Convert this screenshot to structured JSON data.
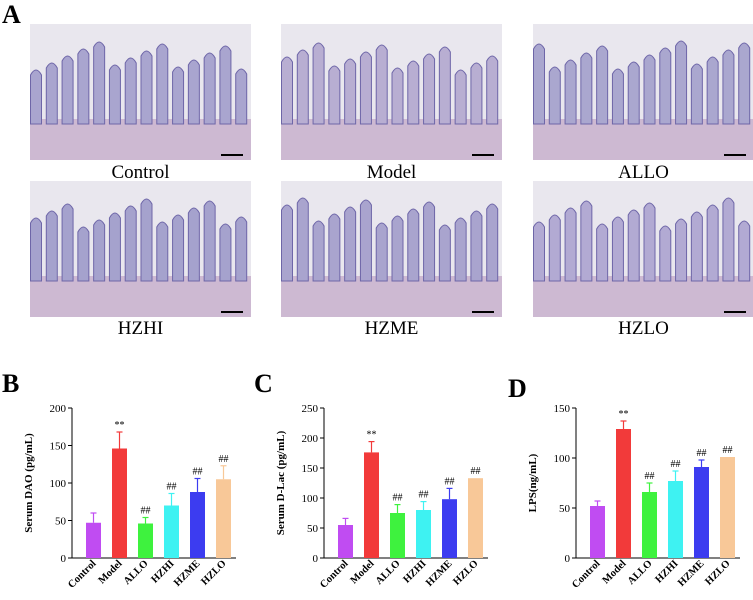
{
  "panel_labels": {
    "a": "A",
    "b": "B",
    "c": "C",
    "d": "D"
  },
  "images": [
    {
      "label": "Control",
      "tone": "#a9a5cf"
    },
    {
      "label": "Model",
      "tone": "#b8aed2"
    },
    {
      "label": "ALLO",
      "tone": "#aaa7cf"
    },
    {
      "label": "HZHI",
      "tone": "#a5a2cd"
    },
    {
      "label": "HZME",
      "tone": "#a9a4ce"
    },
    {
      "label": "HZLO",
      "tone": "#b2aad3"
    }
  ],
  "colors": [
    "#c04cf2",
    "#f23a3a",
    "#3ef23e",
    "#3ef2f2",
    "#3c3cf0",
    "#f8c898"
  ],
  "chart_data": [
    {
      "type": "bar",
      "title": "",
      "xlabel": "",
      "ylabel": "Serum DAO (pg/mL)",
      "ylim": [
        0,
        200
      ],
      "yticks": [
        0,
        50,
        100,
        150,
        200
      ],
      "categories": [
        "Control",
        "Model",
        "ALLO",
        "HZHI",
        "HZME",
        "HZLO"
      ],
      "values": [
        47,
        146,
        46,
        70,
        88,
        105
      ],
      "errors": [
        13,
        22,
        8,
        16,
        18,
        18
      ],
      "annotations": [
        "",
        "**",
        "##",
        "##",
        "##",
        "##"
      ]
    },
    {
      "type": "bar",
      "title": "",
      "xlabel": "",
      "ylabel": "Serum D-Lac (pg/mL)",
      "ylim": [
        0,
        250
      ],
      "yticks": [
        0,
        50,
        100,
        150,
        200,
        250
      ],
      "categories": [
        "Control",
        "Model",
        "ALLO",
        "HZHI",
        "HZME",
        "HZLO"
      ],
      "values": [
        55,
        176,
        75,
        80,
        98,
        133
      ],
      "errors": [
        11,
        18,
        14,
        14,
        18,
        0
      ],
      "annotations": [
        "",
        "**",
        "##",
        "##",
        "##",
        "##"
      ]
    },
    {
      "type": "bar",
      "title": "",
      "xlabel": "",
      "ylabel": "LPS(ng/mL)",
      "ylim": [
        0,
        150
      ],
      "yticks": [
        0,
        50,
        100,
        150
      ],
      "categories": [
        "Control",
        "Model",
        "ALLO",
        "HZHI",
        "HZME",
        "HZLO"
      ],
      "values": [
        52,
        129,
        66,
        77,
        91,
        101
      ],
      "errors": [
        5,
        8,
        9,
        10,
        7,
        0
      ],
      "annotations": [
        "",
        "**",
        "##",
        "##",
        "##",
        "##"
      ]
    }
  ]
}
